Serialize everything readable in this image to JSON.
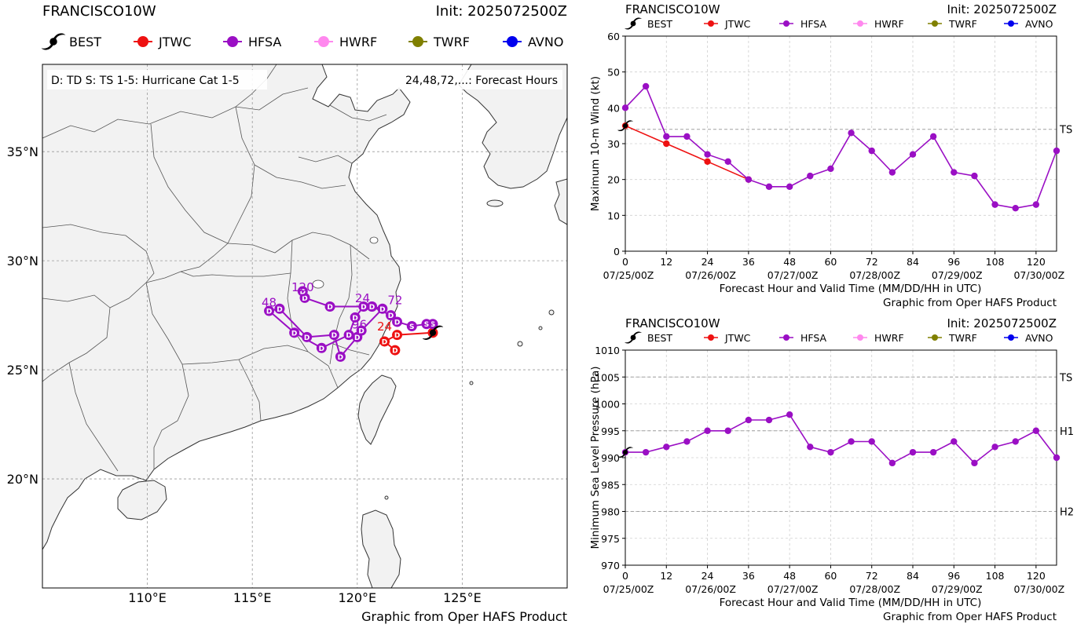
{
  "map": {
    "storm": "FRANCISCO10W",
    "init": "Init: 2025072500Z",
    "legend": [
      {
        "name": "BEST",
        "color": "#000000",
        "symbol": "cyclone"
      },
      {
        "name": "JTWC",
        "color": "#ee1111",
        "symbol": "dot"
      },
      {
        "name": "HFSA",
        "color": "#9a0fc4",
        "symbol": "dot"
      },
      {
        "name": "HWRF",
        "color": "#ff88ee",
        "symbol": "dot"
      },
      {
        "name": "TWRF",
        "color": "#808000",
        "symbol": "dot"
      },
      {
        "name": "AVNO",
        "color": "#0000ee",
        "symbol": "dot"
      }
    ],
    "key_left": "D: TD  S: TS  1-5: Hurricane Cat 1-5",
    "key_right": "24,48,72,...: Forecast Hours",
    "lat_ticks": [
      "35°N",
      "30°N",
      "25°N",
      "20°N"
    ],
    "lon_ticks": [
      "110°E",
      "115°E",
      "120°E",
      "125°E"
    ],
    "credit": "Graphic from Oper HAFS Product",
    "hour_labels": {
      "hfsa": [
        {
          "text": "24",
          "lon": 120.25,
          "lat": 28.1
        },
        {
          "text": "48",
          "lon": 115.8,
          "lat": 27.9
        },
        {
          "text": "72",
          "lon": 121.8,
          "lat": 28.0
        },
        {
          "text": "96",
          "lon": 120.1,
          "lat": 26.9
        },
        {
          "text": "120",
          "lon": 117.4,
          "lat": 28.6
        }
      ],
      "jtwc": [
        {
          "text": "24",
          "lon": 121.3,
          "lat": 26.8
        }
      ]
    }
  },
  "chart_data": [
    {
      "type": "map_tracks",
      "xlim": [
        105,
        130
      ],
      "ylim": [
        15,
        39
      ],
      "tracks": [
        {
          "name": "BEST",
          "points": [
            {
              "lon": 123.6,
              "lat": 26.7,
              "cat": "S"
            }
          ]
        },
        {
          "name": "JTWC",
          "points": [
            {
              "lon": 123.6,
              "lat": 26.7,
              "cat": "S"
            },
            {
              "lon": 121.9,
              "lat": 26.6,
              "cat": "D"
            },
            {
              "lon": 121.3,
              "lat": 26.3,
              "cat": "D"
            },
            {
              "lon": 121.8,
              "lat": 25.9,
              "cat": "D"
            }
          ]
        },
        {
          "name": "HFSA",
          "points": [
            {
              "lon": 123.6,
              "lat": 27.1,
              "cat": "S"
            },
            {
              "lon": 123.3,
              "lat": 27.1,
              "cat": "S"
            },
            {
              "lon": 122.6,
              "lat": 27.0,
              "cat": "S"
            },
            {
              "lon": 121.9,
              "lat": 27.2,
              "cat": "D"
            },
            {
              "lon": 121.6,
              "lat": 27.5,
              "cat": "D"
            },
            {
              "lon": 120.7,
              "lat": 27.9,
              "cat": "D"
            },
            {
              "lon": 120.3,
              "lat": 27.9,
              "cat": "D"
            },
            {
              "lon": 119.9,
              "lat": 27.4,
              "cat": "D"
            },
            {
              "lon": 119.6,
              "lat": 26.6,
              "cat": "D"
            },
            {
              "lon": 118.3,
              "lat": 26.0,
              "cat": "D"
            },
            {
              "lon": 117.0,
              "lat": 26.7,
              "cat": "D"
            },
            {
              "lon": 115.8,
              "lat": 27.7,
              "cat": "D"
            },
            {
              "lon": 116.3,
              "lat": 27.8,
              "cat": "D"
            },
            {
              "lon": 117.6,
              "lat": 26.5,
              "cat": "D"
            },
            {
              "lon": 118.9,
              "lat": 26.6,
              "cat": "D"
            },
            {
              "lon": 119.2,
              "lat": 25.6,
              "cat": "D"
            },
            {
              "lon": 120.0,
              "lat": 26.5,
              "cat": "D"
            },
            {
              "lon": 120.2,
              "lat": 26.8,
              "cat": "D"
            },
            {
              "lon": 121.2,
              "lat": 27.8,
              "cat": "D"
            },
            {
              "lon": 120.7,
              "lat": 27.9,
              "cat": "D"
            },
            {
              "lon": 118.7,
              "lat": 27.9,
              "cat": "D"
            },
            {
              "lon": 117.5,
              "lat": 28.3,
              "cat": "D"
            },
            {
              "lon": 117.4,
              "lat": 28.6,
              "cat": "D"
            }
          ]
        }
      ]
    },
    {
      "type": "line",
      "title": "FRANCISCO10W",
      "init": "Init: 2025072500Z",
      "ylabel": "Maximum 10-m Wind (kt)",
      "xlabel": "Forecast Hour and Valid Time (MM/DD/HH in UTC)",
      "credit": "Graphic from Oper HAFS Product",
      "xlim": [
        0,
        126
      ],
      "ylim": [
        0,
        60
      ],
      "xticks": [
        0,
        12,
        24,
        36,
        48,
        60,
        72,
        84,
        96,
        108,
        120
      ],
      "yticks": [
        0,
        10,
        20,
        30,
        40,
        50,
        60
      ],
      "date_labels": [
        {
          "x": 0,
          "text": "07/25/00Z"
        },
        {
          "x": 24,
          "text": "07/26/00Z"
        },
        {
          "x": 48,
          "text": "07/27/00Z"
        },
        {
          "x": 72,
          "text": "07/28/00Z"
        },
        {
          "x": 96,
          "text": "07/29/00Z"
        },
        {
          "x": 120,
          "text": "07/30/00Z"
        }
      ],
      "ref_lines": [
        {
          "y": 34,
          "label": "TS"
        }
      ],
      "grid": true,
      "legend": [
        "BEST",
        "JTWC",
        "HFSA",
        "HWRF",
        "TWRF",
        "AVNO"
      ],
      "series": [
        {
          "name": "BEST",
          "x": [
            0
          ],
          "values": [
            35
          ]
        },
        {
          "name": "JTWC",
          "x": [
            0,
            12,
            24,
            36
          ],
          "values": [
            35,
            30,
            25,
            20
          ]
        },
        {
          "name": "HFSA",
          "x": [
            0,
            6,
            12,
            18,
            24,
            30,
            36,
            42,
            48,
            54,
            60,
            66,
            72,
            78,
            84,
            90,
            96,
            102,
            108,
            114,
            120,
            126
          ],
          "values": [
            40,
            46,
            32,
            32,
            27,
            25,
            20,
            18,
            18,
            21,
            23,
            33,
            28,
            22,
            27,
            32,
            22,
            21,
            13,
            12,
            13,
            28
          ]
        }
      ]
    },
    {
      "type": "line",
      "title": "FRANCISCO10W",
      "init": "Init: 2025072500Z",
      "ylabel": "Minimum Sea Level Pressure (hPa)",
      "xlabel": "Forecast Hour and Valid Time (MM/DD/HH in UTC)",
      "credit": "Graphic from Oper HAFS Product",
      "xlim": [
        0,
        126
      ],
      "ylim": [
        970,
        1010
      ],
      "xticks": [
        0,
        12,
        24,
        36,
        48,
        60,
        72,
        84,
        96,
        108,
        120
      ],
      "yticks": [
        970,
        975,
        980,
        985,
        990,
        995,
        1000,
        1005,
        1010
      ],
      "date_labels": [
        {
          "x": 0,
          "text": "07/25/00Z"
        },
        {
          "x": 24,
          "text": "07/26/00Z"
        },
        {
          "x": 48,
          "text": "07/27/00Z"
        },
        {
          "x": 72,
          "text": "07/28/00Z"
        },
        {
          "x": 96,
          "text": "07/29/00Z"
        },
        {
          "x": 120,
          "text": "07/30/00Z"
        }
      ],
      "ref_lines": [
        {
          "y": 1005,
          "label": "TS"
        },
        {
          "y": 995,
          "label": "H1"
        },
        {
          "y": 980,
          "label": "H2"
        }
      ],
      "grid": true,
      "legend": [
        "BEST",
        "JTWC",
        "HFSA",
        "HWRF",
        "TWRF",
        "AVNO"
      ],
      "series": [
        {
          "name": "BEST",
          "x": [
            0
          ],
          "values": [
            991
          ]
        },
        {
          "name": "HFSA",
          "x": [
            0,
            6,
            12,
            18,
            24,
            30,
            36,
            42,
            48,
            54,
            60,
            66,
            72,
            78,
            84,
            90,
            96,
            102,
            108,
            114,
            120,
            126
          ],
          "values": [
            991,
            991,
            992,
            993,
            995,
            995,
            997,
            997,
            998,
            992,
            991,
            993,
            993,
            989,
            991,
            991,
            993,
            989,
            992,
            993,
            995,
            990
          ]
        }
      ]
    }
  ]
}
